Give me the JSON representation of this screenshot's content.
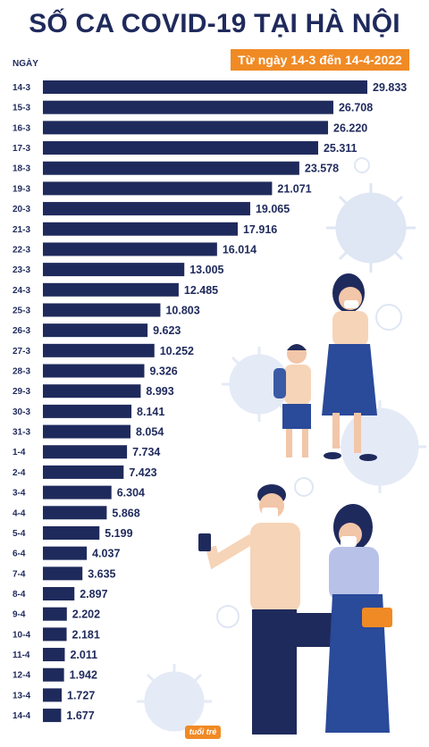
{
  "header": {
    "title": "SỐ CA COVID-19 TẠI HÀ NỘI",
    "date_range": "Từ ngày 14-3 đến 14-4-2022",
    "y_axis_label": "NGÀY"
  },
  "brand": {
    "logo_text": "tuổi trẻ"
  },
  "colors": {
    "bar": "#1f2a5c",
    "accent": "#f08a24",
    "virus": "#dfe6f4",
    "text": "#1f2a5c"
  },
  "chart_data": {
    "type": "bar",
    "orientation": "horizontal",
    "title": "SỐ CA COVID-19 TẠI HÀ NỘI",
    "subtitle": "Từ ngày 14-3 đến 14-4-2022",
    "ylabel": "NGÀY",
    "xlabel": "",
    "categories": [
      "14-3",
      "15-3",
      "16-3",
      "17-3",
      "18-3",
      "19-3",
      "20-3",
      "21-3",
      "22-3",
      "23-3",
      "24-3",
      "25-3",
      "26-3",
      "27-3",
      "28-3",
      "29-3",
      "30-3",
      "31-3",
      "1-4",
      "2-4",
      "3-4",
      "4-4",
      "5-4",
      "6-4",
      "7-4",
      "8-4",
      "9-4",
      "10-4",
      "11-4",
      "12-4",
      "13-4",
      "14-4"
    ],
    "values": [
      29833,
      26708,
      26220,
      25311,
      23578,
      21071,
      19065,
      17916,
      16014,
      13005,
      12485,
      10803,
      9623,
      10252,
      9326,
      8993,
      8141,
      8054,
      7734,
      7423,
      6304,
      5868,
      5199,
      4037,
      3635,
      2897,
      2202,
      2181,
      2011,
      1942,
      1727,
      1677
    ],
    "value_labels": [
      "29.833",
      "26.708",
      "26.220",
      "25.311",
      "23.578",
      "21.071",
      "19.065",
      "17.916",
      "16.014",
      "13.005",
      "12.485",
      "10.803",
      "9.623",
      "10.252",
      "9.326",
      "8.993",
      "8.141",
      "8.054",
      "7.734",
      "7.423",
      "6.304",
      "5.868",
      "5.199",
      "4.037",
      "3.635",
      "2.897",
      "2.202",
      "2.181",
      "2.011",
      "1.942",
      "1.727",
      "1.677"
    ],
    "xlim": [
      0,
      29833
    ],
    "grid": false,
    "legend": "none"
  }
}
